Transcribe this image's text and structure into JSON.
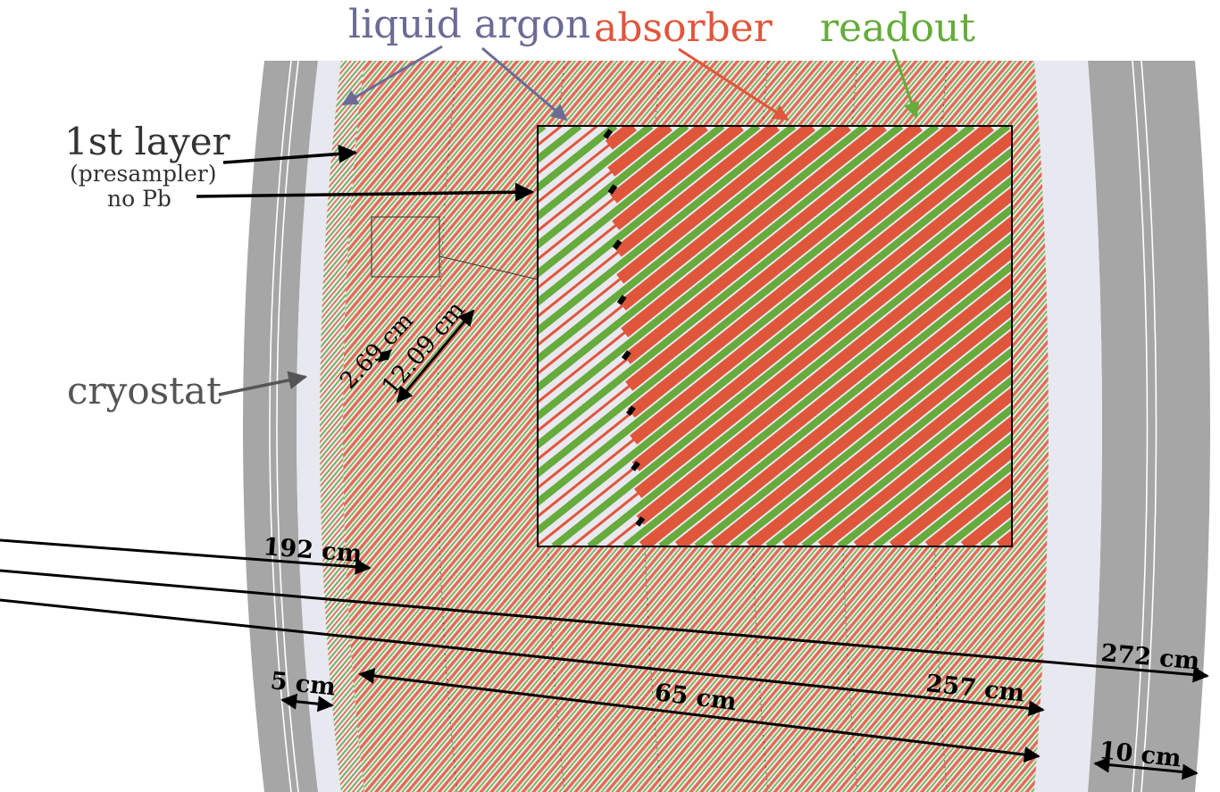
{
  "labels": {
    "liquid_argon": "liquid argon",
    "absorber": "absorber",
    "readout": "readout",
    "first_layer": "1st layer",
    "presampler": "(presampler)",
    "no_pb": "no Pb",
    "cryostat": "cryostat"
  },
  "dimensions": {
    "d_2_69": "2.69 cm",
    "d_12_09": "12.09 cm",
    "d_192": "192 cm",
    "d_272": "272 cm",
    "d_257": "257 cm",
    "d_65": "65 cm",
    "d_5": "5 cm",
    "d_10": "10 cm"
  },
  "colors": {
    "liquid_argon": "#6b6b96",
    "absorber": "#e0563a",
    "readout": "#66ab3c",
    "cryostat_gray": "#a6a6a6",
    "argon_fill": "#e8e8f0",
    "cryostat_label": "#555555"
  }
}
